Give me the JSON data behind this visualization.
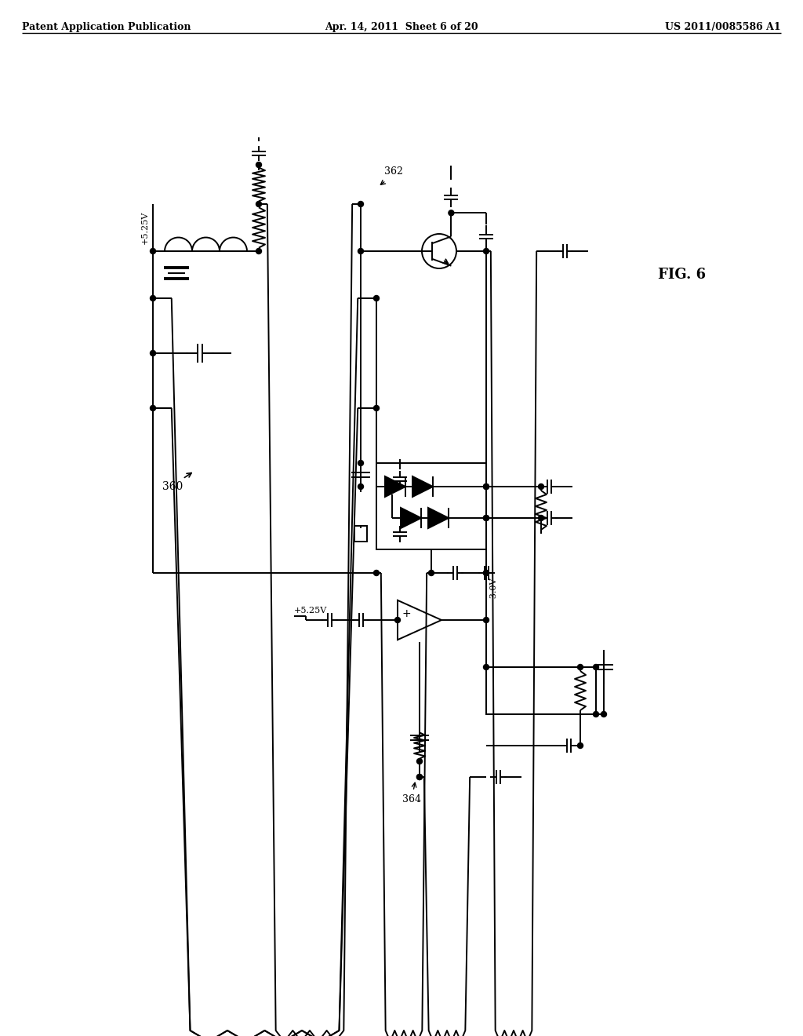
{
  "header_left": "Patent Application Publication",
  "header_mid": "Apr. 14, 2011  Sheet 6 of 20",
  "header_right": "US 2011/0085586 A1",
  "fig_label": "FIG. 6",
  "bg_color": "#ffffff",
  "line_color": "#000000",
  "lw": 1.4
}
